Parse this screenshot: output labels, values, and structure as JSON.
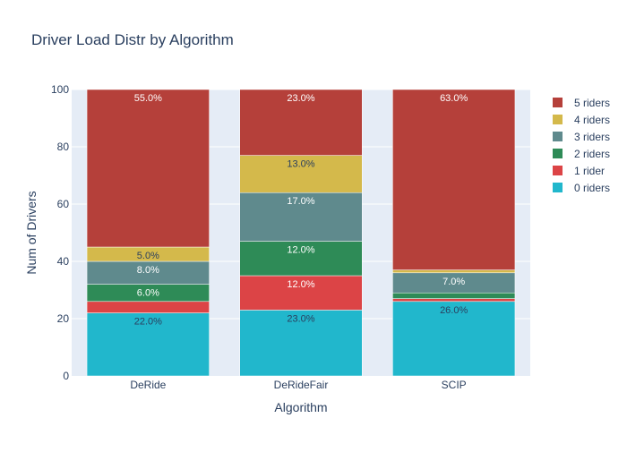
{
  "chart_data": {
    "type": "bar",
    "stacked": true,
    "title": "Driver Load Distr by Algorithm",
    "xlabel": "Algorithm",
    "ylabel": "Num of Drivers",
    "ylim": [
      0,
      100
    ],
    "yticks": [
      0,
      20,
      40,
      60,
      80,
      100
    ],
    "grid": true,
    "legend_position": "right",
    "categories": [
      "DeRide",
      "DeRideFair",
      "SCIP"
    ],
    "series": [
      {
        "name": "0 riders",
        "color": "#21b7cc",
        "values": [
          22,
          23,
          26
        ],
        "labels": [
          "22.0%",
          "23.0%",
          "26.0%"
        ],
        "label_color": "#2a3f5f"
      },
      {
        "name": "1 rider",
        "color": "#dc4446",
        "values": [
          4,
          12,
          1
        ],
        "labels": [
          "",
          "12.0%",
          ""
        ],
        "label_color": "#ffffff"
      },
      {
        "name": "2 riders",
        "color": "#2e8b57",
        "values": [
          6,
          12,
          2
        ],
        "labels": [
          "6.0%",
          "12.0%",
          ""
        ],
        "label_color": "#ffffff"
      },
      {
        "name": "3 riders",
        "color": "#5f8a8d",
        "values": [
          8,
          17,
          7
        ],
        "labels": [
          "8.0%",
          "17.0%",
          "7.0%"
        ],
        "label_color": "#ffffff"
      },
      {
        "name": "4 riders",
        "color": "#d4b94b",
        "values": [
          5,
          13,
          1
        ],
        "labels": [
          "5.0%",
          "13.0%",
          ""
        ],
        "label_color": "#2a3f5f"
      },
      {
        "name": "5 riders",
        "color": "#b5403a",
        "values": [
          55,
          23,
          63
        ],
        "labels": [
          "55.0%",
          "23.0%",
          "63.0%"
        ],
        "label_color": "#ffffff"
      }
    ]
  }
}
